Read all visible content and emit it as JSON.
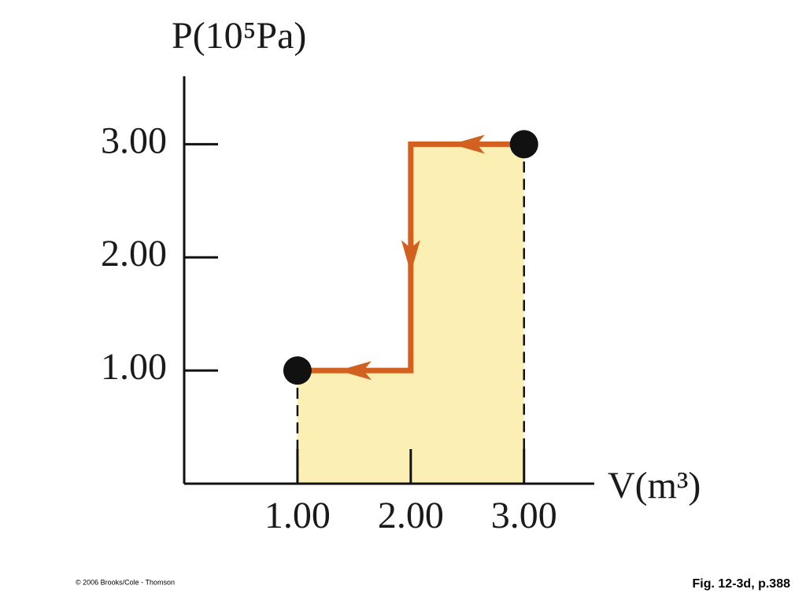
{
  "chart_data": {
    "type": "line",
    "x": [
      3,
      2,
      2,
      1
    ],
    "y": [
      3,
      3,
      1,
      1
    ],
    "color": "#d2601e",
    "fill_color": "#fcefb3",
    "xlim": [
      0,
      3.62
    ],
    "ylim": [
      0,
      3.6
    ],
    "xticks": [
      {
        "value": 1,
        "label": "1.00"
      },
      {
        "value": 2,
        "label": "2.00"
      },
      {
        "value": 3,
        "label": "3.00"
      }
    ],
    "yticks": [
      {
        "value": 1,
        "label": "1.00"
      },
      {
        "value": 2,
        "label": "2.00"
      },
      {
        "value": 3,
        "label": "3.00"
      }
    ],
    "x_label": "V(m³)",
    "y_label": "P(10⁵Pa)"
  },
  "credit": "© 2006 Brooks/Cole - Thomson",
  "caption": "Fig. 12-3d, p.388"
}
